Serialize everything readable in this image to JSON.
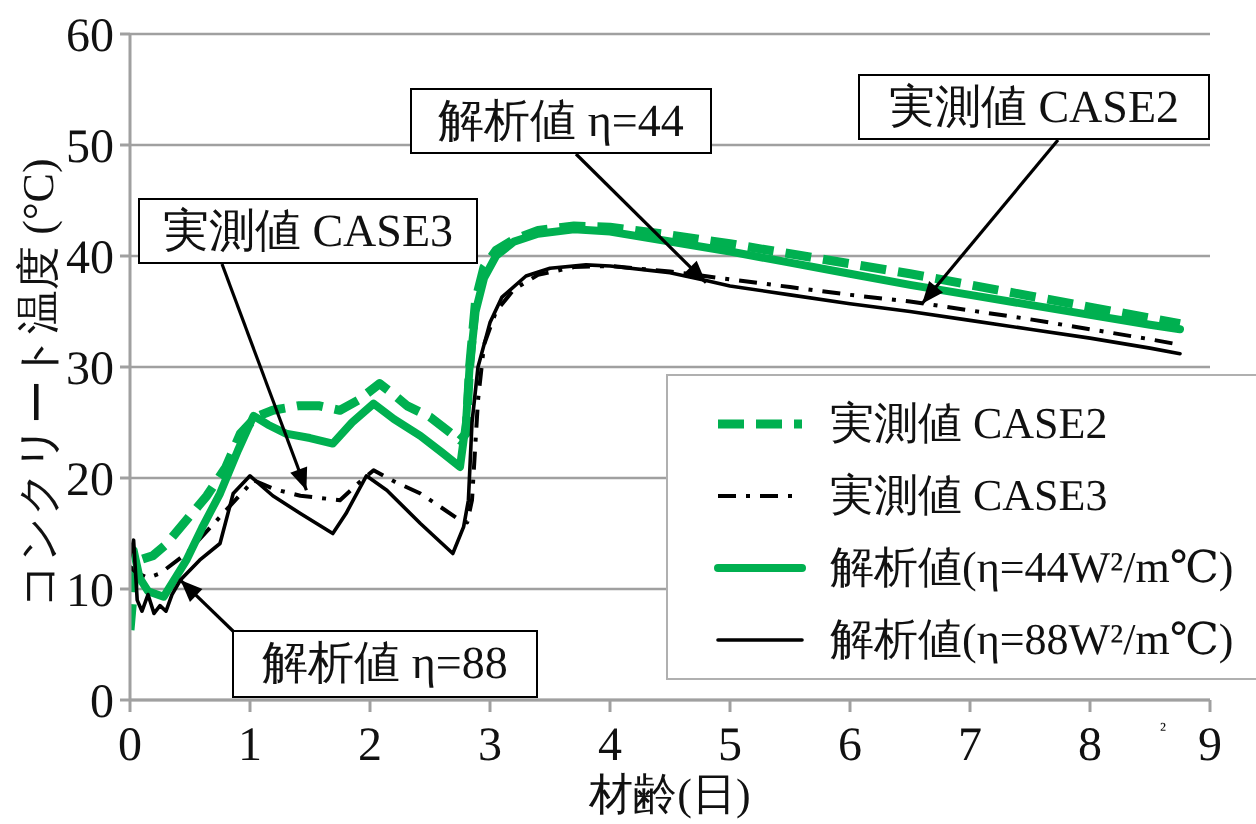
{
  "chart_data": {
    "type": "line",
    "xlabel": "材齢(日)",
    "ylabel": "コンクリート温度 (°C)",
    "xlim": [
      0,
      9
    ],
    "xticks": [
      0,
      1,
      2,
      3,
      4,
      5,
      6,
      7,
      8,
      9
    ],
    "ylim": [
      0,
      60
    ],
    "yticks": [
      0,
      10,
      20,
      30,
      40,
      50,
      60
    ],
    "grid": "y",
    "legend": "bottom right",
    "marker": "none",
    "series": [
      {
        "name": "実測値 CASE2",
        "color": "#00b050",
        "line_style": "dashed",
        "x": [
          0,
          0.05,
          0.19,
          0.3,
          0.47,
          0.64,
          0.8,
          0.92,
          1.05,
          1.19,
          1.4,
          1.58,
          1.75,
          1.9,
          2.08,
          2.2,
          2.31,
          2.5,
          2.75,
          2.8,
          2.83,
          2.88,
          2.95,
          3.05,
          3.2,
          3.4,
          3.7,
          4.0,
          4.5,
          5.0,
          5.5,
          6.0,
          6.5,
          7.0,
          7.5,
          8.0,
          8.5,
          8.75
        ],
        "values": [
          6.3,
          12.5,
          13,
          14,
          16.2,
          18.4,
          21,
          24,
          25.5,
          26.1,
          26.5,
          26.5,
          26.1,
          27,
          28.5,
          27.5,
          26.5,
          25.5,
          23.4,
          24,
          30,
          36,
          39,
          40.5,
          41.5,
          42.3,
          42.7,
          42.6,
          41.9,
          41.1,
          40.2,
          39.3,
          38.4,
          37.4,
          36.4,
          35.4,
          34.4,
          33.9
        ]
      },
      {
        "name": "実測値 CASE3",
        "color": "#000000",
        "line_style": "dashdot",
        "x": [
          0,
          0.05,
          0.15,
          0.25,
          0.47,
          0.75,
          1.03,
          1.2,
          1.42,
          1.75,
          1.9,
          2.03,
          2.2,
          2.42,
          2.6,
          2.75,
          2.81,
          2.85,
          2.9,
          2.95,
          3.05,
          3.2,
          3.4,
          3.7,
          4.0,
          4.5,
          5.0,
          5.5,
          6.0,
          6.5,
          7.0,
          7.5,
          8.0,
          8.5,
          8.75
        ],
        "values": [
          12,
          11.5,
          11,
          11.4,
          13.2,
          16.5,
          19.8,
          19,
          18.4,
          18,
          19.5,
          20.7,
          19.7,
          18.6,
          17.3,
          16.2,
          16,
          18,
          27,
          32,
          35,
          37,
          38.3,
          39,
          39.1,
          38.6,
          37.9,
          37.2,
          36.5,
          35.9,
          35.1,
          34.3,
          33.4,
          32.5,
          32.0
        ]
      },
      {
        "name": "解析値(η=44W²/m℃)",
        "color": "#00b050",
        "line_style": "solid",
        "x": [
          0,
          0.03,
          0.08,
          0.15,
          0.28,
          0.35,
          0.47,
          0.6,
          0.75,
          0.9,
          1.03,
          1.15,
          1.3,
          1.5,
          1.69,
          1.85,
          2.03,
          2.2,
          2.42,
          2.6,
          2.75,
          2.8,
          2.83,
          2.88,
          2.95,
          3.05,
          3.2,
          3.4,
          3.7,
          4.0,
          4.5,
          5.0,
          5.5,
          6.0,
          6.5,
          7.0,
          7.5,
          8.0,
          8.5,
          8.75
        ],
        "values": [
          13.2,
          13.5,
          11,
          9.8,
          9.3,
          10.5,
          12.6,
          15.5,
          18.6,
          22.5,
          25.6,
          24.8,
          24,
          23.6,
          23.1,
          25,
          26.7,
          25.3,
          23.8,
          22.3,
          21,
          25,
          30,
          35,
          38,
          40,
          41.3,
          42,
          42.4,
          42.2,
          41.3,
          40.4,
          39.4,
          38.4,
          37.4,
          36.5,
          35.6,
          34.7,
          33.8,
          33.4
        ]
      },
      {
        "name": "解析値(η=88W²/m℃)",
        "color": "#000000",
        "line_style": "solid",
        "x": [
          0,
          0.03,
          0.06,
          0.1,
          0.15,
          0.2,
          0.25,
          0.3,
          0.35,
          0.42,
          0.58,
          0.75,
          0.86,
          1.0,
          1.19,
          1.42,
          1.69,
          1.8,
          1.97,
          2.14,
          2.42,
          2.69,
          2.78,
          2.82,
          2.85,
          2.9,
          3.0,
          3.1,
          3.3,
          3.5,
          3.8,
          4.0,
          4.5,
          4.8,
          5.0,
          5.5,
          6.0,
          6.5,
          7.0,
          7.5,
          8.0,
          8.5,
          8.75
        ],
        "values": [
          13,
          14.4,
          9,
          8,
          9.5,
          7.8,
          8.5,
          8,
          9.5,
          10.8,
          12.6,
          14.1,
          18.6,
          20.2,
          18.4,
          16.8,
          15,
          16.8,
          20.2,
          18.9,
          15.9,
          13.2,
          15.6,
          18,
          25,
          30,
          34,
          36.3,
          38.2,
          38.9,
          39.2,
          39.1,
          38.5,
          37.8,
          37.3,
          36.5,
          35.7,
          35,
          34.2,
          33.4,
          32.6,
          31.7,
          31.2
        ]
      }
    ],
    "annotations": [
      {
        "text": "解析値 η=44",
        "x": 4.8,
        "y": 37.6
      },
      {
        "text": "実測値 CASE2",
        "x": 6.6,
        "y": 35.7
      },
      {
        "text": "実測値 CASE3",
        "x": 1.47,
        "y": 18.9
      },
      {
        "text": "解析値 η=88",
        "x": 0.42,
        "y": 10.8
      },
      "²"
    ]
  }
}
